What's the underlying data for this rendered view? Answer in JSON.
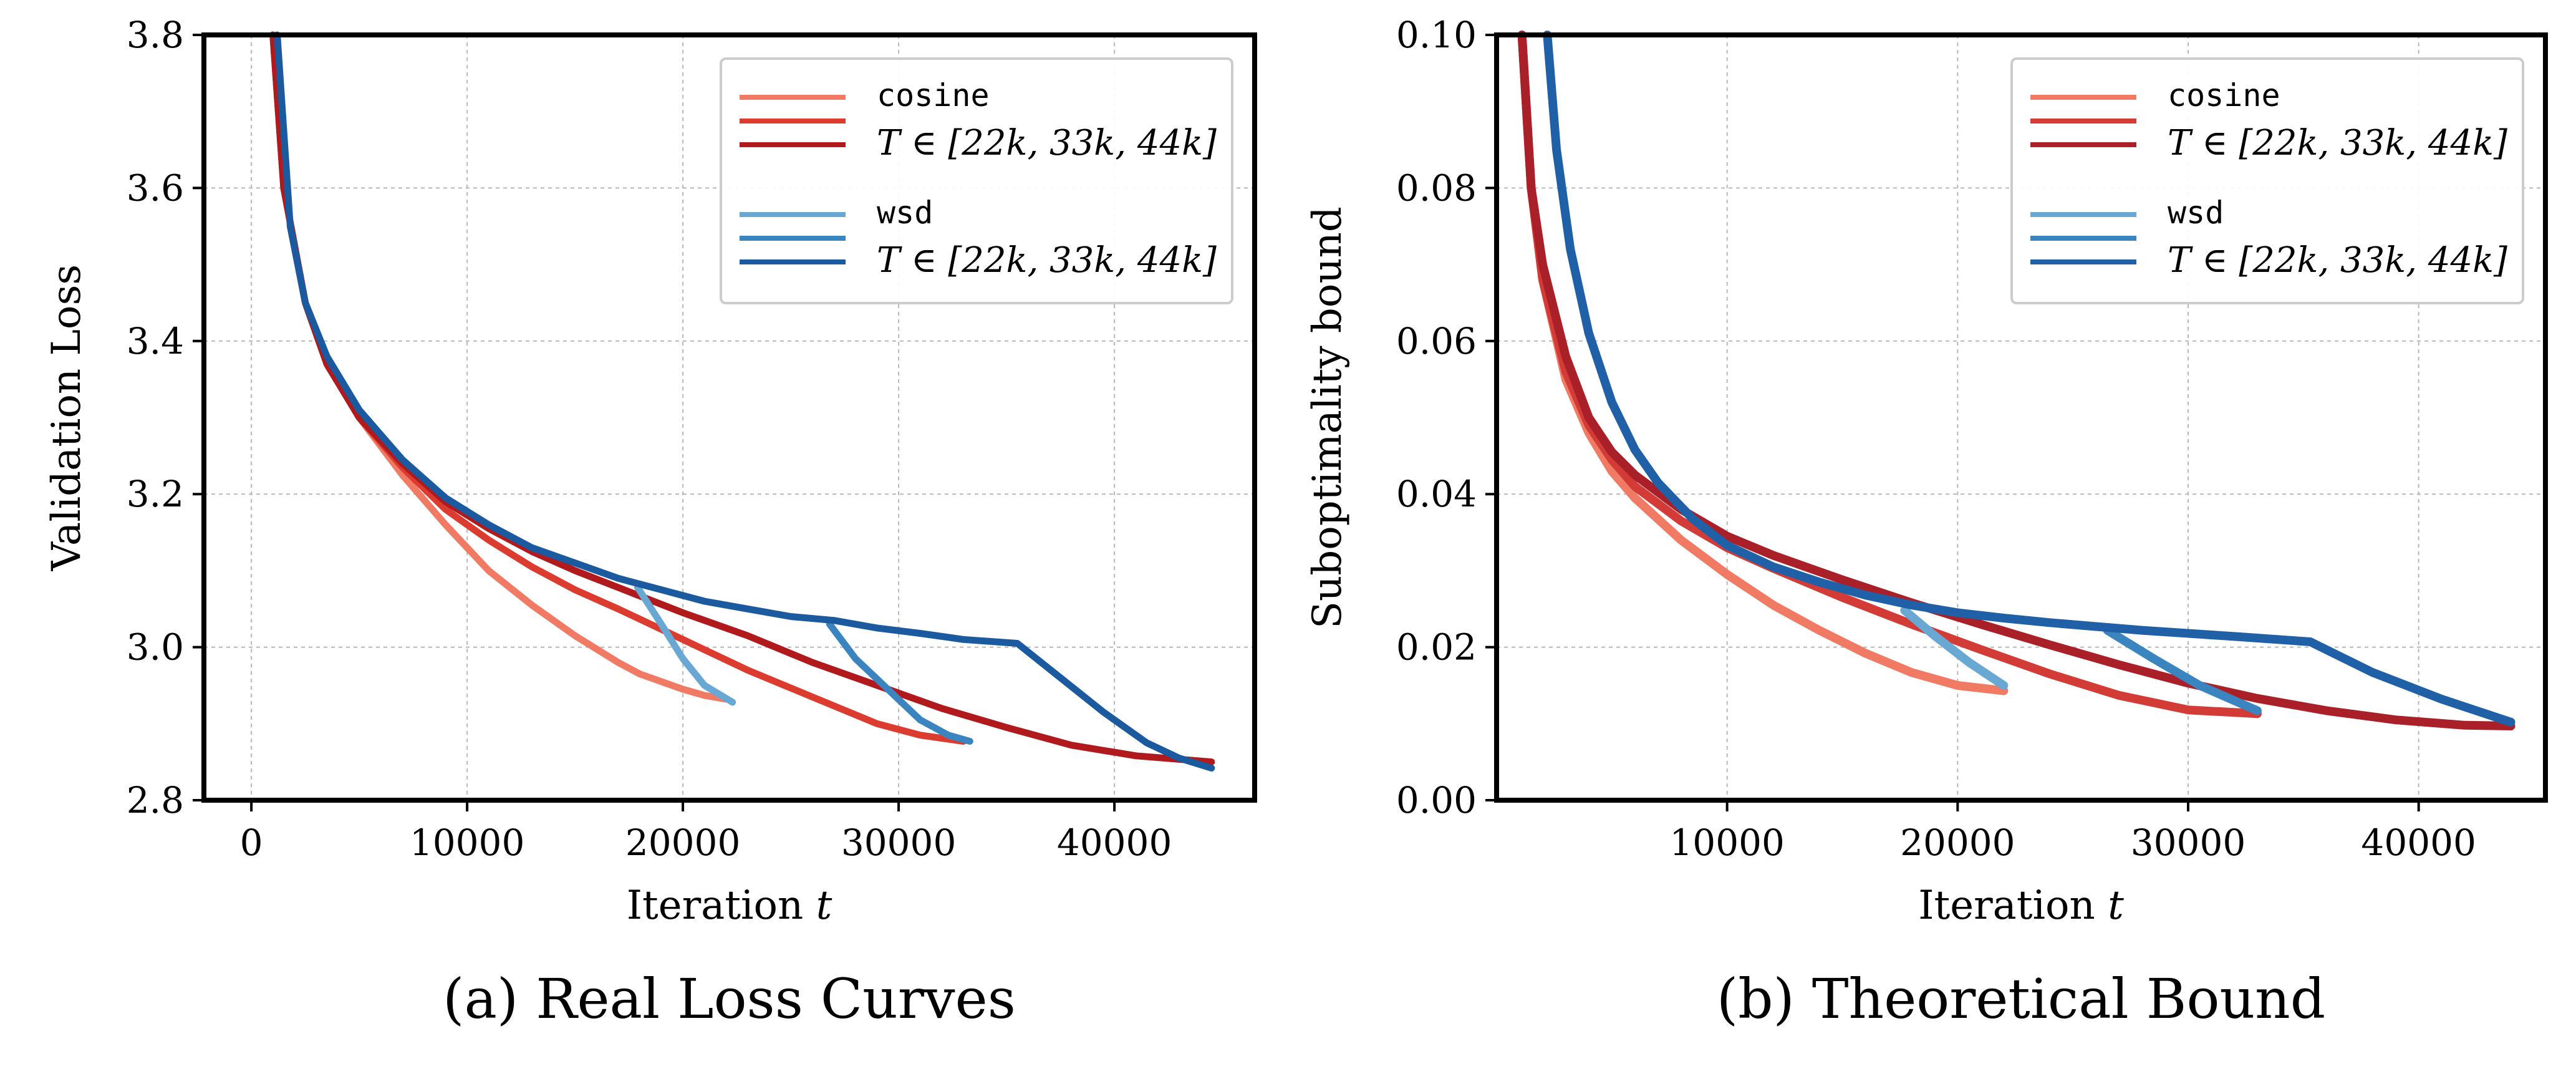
{
  "colors": {
    "cosine": [
      "#f07a63",
      "#dc3c30",
      "#b01a1d"
    ],
    "wsd": [
      "#6aa8d4",
      "#3a84c0",
      "#1b5a9e"
    ],
    "theory_cosine": [
      "#f07a63",
      "#d33b36",
      "#aa2028"
    ],
    "theory_wsd": [
      "#6aa8d4",
      "#3a84c0",
      "#2060a6"
    ]
  },
  "chart_data": [
    {
      "type": "line",
      "title": "",
      "caption": "(a) Real Loss Curves",
      "xlabel_text": "Iteration",
      "xlabel_var": "t",
      "ylabel": "Validation Loss",
      "xlim": [
        -2200,
        46500
      ],
      "ylim": [
        2.8,
        3.8
      ],
      "xticks": [
        0,
        10000,
        20000,
        30000,
        40000
      ],
      "xtick_labels": [
        "0",
        "10000",
        "20000",
        "30000",
        "40000"
      ],
      "yticks": [
        2.8,
        3.0,
        3.2,
        3.4,
        3.6,
        3.8
      ],
      "ytick_labels": [
        "2.8",
        "3.0",
        "3.2",
        "3.4",
        "3.6",
        "3.8"
      ],
      "grid": true,
      "legend_position": "top-right",
      "legend": {
        "cosine_label": "cosine",
        "cosine_T": "T ∈ [22k, 33k, 44k]",
        "wsd_label": "wsd",
        "wsd_T": "T ∈ [22k, 33k, 44k]"
      },
      "series": [
        {
          "name": "cosine T=22k",
          "group": "cosine",
          "shade": 0,
          "x": [
            1000,
            1500,
            2500,
            3500,
            5000,
            7000,
            9000,
            11000,
            13000,
            15000,
            17000,
            18000,
            19000,
            20000,
            21000,
            22000
          ],
          "y": [
            3.8,
            3.6,
            3.45,
            3.37,
            3.3,
            3.225,
            3.16,
            3.1,
            3.055,
            3.015,
            2.98,
            2.965,
            2.955,
            2.945,
            2.937,
            2.932
          ]
        },
        {
          "name": "cosine T=33k",
          "group": "cosine",
          "shade": 1,
          "x": [
            1000,
            1500,
            2500,
            3500,
            5000,
            7000,
            9000,
            11000,
            13000,
            15000,
            17000,
            20000,
            23000,
            26000,
            29000,
            31000,
            33000
          ],
          "y": [
            3.8,
            3.6,
            3.45,
            3.37,
            3.3,
            3.235,
            3.18,
            3.14,
            3.105,
            3.075,
            3.05,
            3.01,
            2.97,
            2.935,
            2.9,
            2.885,
            2.877
          ]
        },
        {
          "name": "cosine T=44k",
          "group": "cosine",
          "shade": 2,
          "x": [
            1000,
            1500,
            2500,
            3500,
            5000,
            7000,
            9000,
            11000,
            13000,
            15000,
            17000,
            20000,
            23000,
            26000,
            29000,
            32000,
            35000,
            38000,
            41000,
            44500
          ],
          "y": [
            3.8,
            3.6,
            3.45,
            3.37,
            3.3,
            3.24,
            3.19,
            3.155,
            3.125,
            3.1,
            3.078,
            3.045,
            3.015,
            2.98,
            2.95,
            2.92,
            2.895,
            2.872,
            2.858,
            2.85
          ]
        },
        {
          "name": "wsd T=22k",
          "group": "wsd",
          "shade": 0,
          "x": [
            17900,
            19000,
            20000,
            21000,
            22300
          ],
          "y": [
            3.078,
            3.03,
            2.985,
            2.95,
            2.928
          ]
        },
        {
          "name": "wsd T=33k",
          "group": "wsd",
          "shade": 1,
          "x": [
            26800,
            28000,
            29500,
            31000,
            32300,
            33300
          ],
          "y": [
            3.03,
            2.985,
            2.945,
            2.905,
            2.885,
            2.877
          ]
        },
        {
          "name": "wsd T=44k",
          "group": "wsd",
          "shade": 2,
          "x": [
            1200,
            1800,
            2500,
            3500,
            5000,
            7000,
            9000,
            11000,
            13000,
            15000,
            17000,
            19000,
            21000,
            23000,
            25000,
            27000,
            29000,
            31000,
            33000,
            35500,
            37500,
            39500,
            41500,
            43000,
            44500
          ],
          "y": [
            3.8,
            3.55,
            3.45,
            3.38,
            3.31,
            3.245,
            3.195,
            3.16,
            3.13,
            3.11,
            3.09,
            3.075,
            3.06,
            3.05,
            3.04,
            3.035,
            3.025,
            3.018,
            3.01,
            3.005,
            2.96,
            2.915,
            2.875,
            2.855,
            2.842
          ]
        }
      ]
    },
    {
      "type": "line",
      "title": "",
      "caption": "(b) Theoretical Bound",
      "xlabel_text": "Iteration",
      "xlabel_var": "t",
      "ylabel": "Suboptimality bound",
      "xlim": [
        0,
        45500
      ],
      "ylim": [
        0.0,
        0.1
      ],
      "xticks": [
        10000,
        20000,
        30000,
        40000
      ],
      "xtick_labels": [
        "10000",
        "20000",
        "30000",
        "40000"
      ],
      "yticks": [
        0.0,
        0.02,
        0.04,
        0.06,
        0.08,
        0.1
      ],
      "ytick_labels": [
        "0.00",
        "0.02",
        "0.04",
        "0.06",
        "0.08",
        "0.10"
      ],
      "grid": true,
      "legend_position": "top-right",
      "legend": {
        "cosine_label": "cosine",
        "cosine_T": "T ∈ [22k, 33k, 44k]",
        "wsd_label": "wsd",
        "wsd_T": "T ∈ [22k, 33k, 44k]"
      },
      "series": [
        {
          "name": "cosine T=22k",
          "group": "cosine",
          "shade": 0,
          "x": [
            1100,
            1500,
            2000,
            3000,
            4000,
            5000,
            6000,
            8000,
            10000,
            12000,
            14000,
            16000,
            18000,
            20000,
            22000
          ],
          "y": [
            0.1,
            0.08,
            0.068,
            0.055,
            0.048,
            0.043,
            0.0395,
            0.034,
            0.0295,
            0.0255,
            0.0222,
            0.0192,
            0.0167,
            0.015,
            0.0143
          ]
        },
        {
          "name": "cosine T=33k",
          "group": "cosine",
          "shade": 1,
          "x": [
            1100,
            1500,
            2000,
            3000,
            4000,
            5000,
            6000,
            8000,
            10000,
            12000,
            15000,
            18000,
            21000,
            24000,
            27000,
            30000,
            33000
          ],
          "y": [
            0.1,
            0.08,
            0.068,
            0.056,
            0.049,
            0.0445,
            0.041,
            0.0365,
            0.033,
            0.0303,
            0.0265,
            0.023,
            0.0197,
            0.0165,
            0.0137,
            0.0118,
            0.0113
          ]
        },
        {
          "name": "cosine T=44k",
          "group": "cosine",
          "shade": 2,
          "x": [
            1100,
            1500,
            2000,
            3000,
            4000,
            5000,
            6000,
            8000,
            10000,
            12000,
            15000,
            18000,
            21000,
            24000,
            27000,
            30000,
            33000,
            36000,
            39000,
            42000,
            44000
          ],
          "y": [
            0.1,
            0.08,
            0.07,
            0.058,
            0.05,
            0.0455,
            0.0425,
            0.038,
            0.0345,
            0.032,
            0.0288,
            0.0258,
            0.023,
            0.0203,
            0.0177,
            0.0153,
            0.0133,
            0.0117,
            0.0105,
            0.0098,
            0.0097
          ]
        },
        {
          "name": "wsd T=22k",
          "group": "wsd",
          "shade": 0,
          "x": [
            17700,
            19000,
            20500,
            22000
          ],
          "y": [
            0.0248,
            0.0215,
            0.018,
            0.015
          ]
        },
        {
          "name": "wsd T=33k",
          "group": "wsd",
          "shade": 1,
          "x": [
            26500,
            28500,
            30500,
            33000
          ],
          "y": [
            0.0222,
            0.0185,
            0.015,
            0.0117
          ]
        },
        {
          "name": "wsd T=44k",
          "group": "wsd",
          "shade": 2,
          "x": [
            2200,
            2600,
            3200,
            4000,
            5000,
            6000,
            7000,
            8500,
            10000,
            12000,
            14000,
            16000,
            18000,
            20000,
            22000,
            24000,
            26000,
            28000,
            30000,
            32000,
            35300,
            38000,
            41000,
            44000
          ],
          "y": [
            0.1,
            0.085,
            0.072,
            0.061,
            0.052,
            0.0458,
            0.0415,
            0.0368,
            0.0333,
            0.0305,
            0.0285,
            0.0268,
            0.0255,
            0.0245,
            0.0238,
            0.0232,
            0.0227,
            0.0222,
            0.0218,
            0.0214,
            0.0207,
            0.0167,
            0.0132,
            0.0102
          ]
        }
      ]
    }
  ]
}
